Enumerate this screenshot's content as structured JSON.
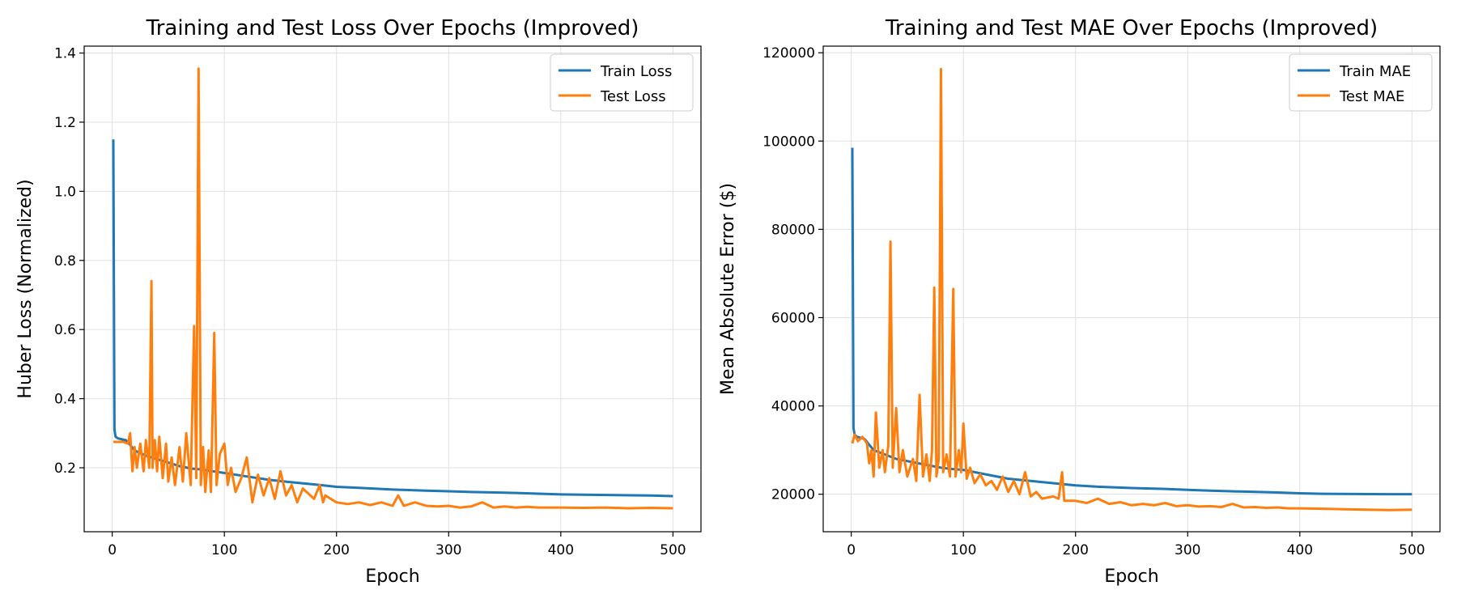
{
  "colors": {
    "train": "#1f77b4",
    "test": "#ff7f0e",
    "grid": "#e0e0e0"
  },
  "chart_data": [
    {
      "type": "line",
      "title": "Training and Test Loss Over Epochs (Improved)",
      "xlabel": "Epoch",
      "ylabel": "Huber Loss (Normalized)",
      "xlim": [
        -25,
        525
      ],
      "ylim": [
        0.015,
        1.42
      ],
      "xticks": [
        0,
        100,
        200,
        300,
        400,
        500
      ],
      "yticks": [
        0.2,
        0.4,
        0.6,
        0.8,
        1.0,
        1.2,
        1.4
      ],
      "ytick_labels": [
        "0.2",
        "0.4",
        "0.6",
        "0.8",
        "1.0",
        "1.2",
        "1.4"
      ],
      "grid": true,
      "legend": "top-right",
      "series": [
        {
          "name": "Train Loss",
          "color": "#1f77b4",
          "x": [
            1,
            2,
            3,
            5,
            8,
            12,
            15,
            20,
            30,
            40,
            50,
            60,
            70,
            80,
            90,
            100,
            120,
            140,
            160,
            180,
            200,
            220,
            250,
            280,
            300,
            320,
            350,
            380,
            400,
            420,
            450,
            480,
            500
          ],
          "y": [
            1.15,
            0.31,
            0.29,
            0.285,
            0.283,
            0.28,
            0.27,
            0.25,
            0.235,
            0.225,
            0.215,
            0.205,
            0.198,
            0.195,
            0.19,
            0.185,
            0.175,
            0.165,
            0.158,
            0.152,
            0.145,
            0.142,
            0.137,
            0.134,
            0.132,
            0.13,
            0.128,
            0.125,
            0.123,
            0.122,
            0.121,
            0.12,
            0.118
          ]
        },
        {
          "name": "Test Loss",
          "color": "#ff7f0e",
          "x": [
            1,
            5,
            10,
            14,
            16,
            18,
            20,
            22,
            25,
            28,
            30,
            33,
            35,
            36,
            38,
            40,
            42,
            45,
            48,
            50,
            53,
            56,
            60,
            63,
            66,
            70,
            73,
            75,
            77,
            79,
            81,
            83,
            86,
            88,
            91,
            93,
            96,
            100,
            103,
            106,
            110,
            115,
            120,
            125,
            130,
            135,
            140,
            145,
            150,
            155,
            160,
            165,
            170,
            180,
            185,
            188,
            190,
            200,
            210,
            220,
            230,
            240,
            250,
            255,
            260,
            270,
            280,
            290,
            300,
            310,
            320,
            330,
            340,
            350,
            360,
            370,
            380,
            390,
            400,
            420,
            440,
            460,
            480,
            500
          ],
          "y": [
            0.275,
            0.275,
            0.275,
            0.27,
            0.3,
            0.19,
            0.26,
            0.2,
            0.27,
            0.19,
            0.28,
            0.2,
            0.74,
            0.2,
            0.28,
            0.19,
            0.29,
            0.17,
            0.27,
            0.16,
            0.23,
            0.15,
            0.26,
            0.16,
            0.3,
            0.15,
            0.61,
            0.17,
            1.355,
            0.15,
            0.26,
            0.13,
            0.25,
            0.13,
            0.59,
            0.15,
            0.24,
            0.27,
            0.15,
            0.2,
            0.13,
            0.17,
            0.23,
            0.1,
            0.18,
            0.12,
            0.17,
            0.11,
            0.19,
            0.12,
            0.15,
            0.1,
            0.14,
            0.11,
            0.15,
            0.1,
            0.12,
            0.1,
            0.095,
            0.1,
            0.092,
            0.1,
            0.09,
            0.12,
            0.09,
            0.1,
            0.09,
            0.088,
            0.09,
            0.085,
            0.088,
            0.1,
            0.085,
            0.088,
            0.085,
            0.087,
            0.085,
            0.085,
            0.085,
            0.084,
            0.085,
            0.083,
            0.084,
            0.083
          ]
        }
      ]
    },
    {
      "type": "line",
      "title": "Training and Test MAE Over Epochs (Improved)",
      "xlabel": "Epoch",
      "ylabel": "Mean Absolute Error ($)",
      "xlim": [
        -25,
        525
      ],
      "ylim": [
        11500,
        121500
      ],
      "xticks": [
        0,
        100,
        200,
        300,
        400,
        500
      ],
      "yticks": [
        20000,
        40000,
        60000,
        80000,
        100000,
        120000
      ],
      "ytick_labels": [
        "20000",
        "40000",
        "60000",
        "80000",
        "100000",
        "120000"
      ],
      "grid": true,
      "legend": "top-right",
      "series": [
        {
          "name": "Train MAE",
          "color": "#1f77b4",
          "x": [
            1,
            2,
            3,
            5,
            8,
            12,
            15,
            20,
            30,
            40,
            50,
            60,
            70,
            80,
            90,
            100,
            120,
            140,
            160,
            180,
            200,
            220,
            250,
            280,
            300,
            320,
            350,
            380,
            400,
            420,
            450,
            480,
            500
          ],
          "y": [
            98500,
            35000,
            33500,
            33000,
            32800,
            32500,
            31500,
            30000,
            29000,
            28000,
            27500,
            27000,
            26500,
            26000,
            25700,
            25500,
            24500,
            23500,
            23000,
            22500,
            22000,
            21700,
            21400,
            21200,
            21000,
            20800,
            20600,
            20400,
            20200,
            20100,
            20050,
            20000,
            20000
          ]
        },
        {
          "name": "Test MAE",
          "color": "#ff7f0e",
          "x": [
            1,
            3,
            6,
            10,
            14,
            16,
            18,
            20,
            22,
            25,
            28,
            30,
            33,
            35,
            37,
            40,
            43,
            46,
            50,
            55,
            58,
            61,
            64,
            67,
            70,
            72,
            74,
            76,
            78,
            80,
            82,
            85,
            88,
            91,
            93,
            96,
            98,
            100,
            103,
            106,
            110,
            115,
            120,
            125,
            130,
            135,
            140,
            145,
            150,
            155,
            160,
            165,
            170,
            180,
            185,
            188,
            190,
            200,
            210,
            220,
            230,
            240,
            250,
            260,
            270,
            280,
            290,
            300,
            310,
            320,
            330,
            340,
            350,
            360,
            370,
            380,
            390,
            400,
            420,
            440,
            460,
            480,
            500
          ],
          "y": [
            31500,
            33500,
            32000,
            33000,
            31500,
            27000,
            30000,
            24000,
            38500,
            26000,
            30000,
            25000,
            31000,
            77200,
            26000,
            39500,
            25000,
            30000,
            24000,
            28000,
            23000,
            42500,
            24000,
            29000,
            23000,
            30000,
            66800,
            24000,
            28000,
            116300,
            25000,
            29000,
            24000,
            66500,
            24000,
            30000,
            25000,
            36000,
            23500,
            26000,
            22500,
            24500,
            22000,
            23000,
            21000,
            24000,
            20500,
            23000,
            20000,
            25000,
            19500,
            20500,
            19000,
            19500,
            19000,
            25000,
            18500,
            18500,
            18000,
            19000,
            17800,
            18200,
            17500,
            17800,
            17500,
            18000,
            17300,
            17500,
            17200,
            17300,
            17100,
            17800,
            17000,
            17100,
            16900,
            17000,
            16800,
            16800,
            16700,
            16600,
            16500,
            16400,
            16500
          ]
        }
      ]
    }
  ]
}
